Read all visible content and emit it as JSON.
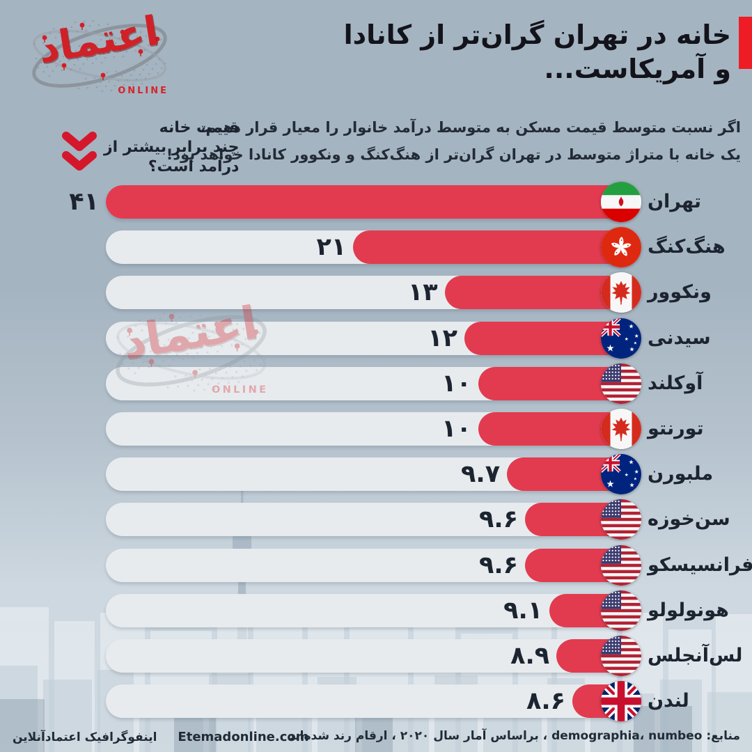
{
  "logo": {
    "wordmark": "اعتماد",
    "online": "ONLINE"
  },
  "header": {
    "title_line1": "خانه در تهران گران‌تر از کانادا",
    "title_line2": "و آمریکاست...",
    "accent_color": "#ee1c25"
  },
  "subtitle": {
    "line1": "اگر نسبت متوسط قیمت مسکن به متوسط درآمد خانوار را معیار قرار دهیم،",
    "line2": "یک خانه با متراژ متوسط در تهران گران‌تر از هنگ‌کنگ و ونکوور کانادا خواهد بود!"
  },
  "question": {
    "line1": "قیمت خانه",
    "line2": "چند برابر بیشتر از",
    "line3": "درآمد است؟",
    "icon": "double-chevron-down-icon",
    "icon_color": "#d5172c"
  },
  "chart_data": {
    "type": "bar",
    "orientation": "horizontal",
    "direction": "rtl",
    "title": "خانه در تهران گران‌تر از کانادا و آمریکاست...",
    "xlabel": "",
    "ylabel": "",
    "xlim": [
      0,
      41
    ],
    "grid": false,
    "legend": false,
    "bar_color": "#e23b4f",
    "track_color": "#e7ebee",
    "categories": [
      "تهران",
      "هنگ‌کنگ",
      "ونکوور",
      "سیدنی",
      "آوکلند",
      "تورنتو",
      "ملبورن",
      "سن‌خوزه",
      "سان‌فرانسیسکو",
      "هونولولو",
      "لس‌آنجلس",
      "لندن"
    ],
    "values": [
      41,
      21,
      13,
      12,
      10,
      10,
      9.7,
      9.6,
      9.6,
      9.1,
      8.9,
      8.6
    ],
    "rows": [
      {
        "city": "تهران",
        "flag": "iran",
        "value": 41,
        "value_fa": "۴۱",
        "bar_pct": 100
      },
      {
        "city": "هنگ‌کنگ",
        "flag": "hongkong",
        "value": 21,
        "value_fa": "۲۱",
        "bar_pct": 53.5
      },
      {
        "city": "ونکوور",
        "flag": "canada",
        "value": 13,
        "value_fa": "۱۳",
        "bar_pct": 36.3
      },
      {
        "city": "سیدنی",
        "flag": "australia",
        "value": 12,
        "value_fa": "۱۲",
        "bar_pct": 32.6
      },
      {
        "city": "آوکلند",
        "flag": "usa",
        "value": 10,
        "value_fa": "۱۰",
        "bar_pct": 30
      },
      {
        "city": "تورنتو",
        "flag": "canada",
        "value": 10,
        "value_fa": "۱۰",
        "bar_pct": 30
      },
      {
        "city": "ملبورن",
        "flag": "australia",
        "value": 9.7,
        "value_fa": "۹.۷",
        "bar_pct": 24.6
      },
      {
        "city": "سن‌خوزه",
        "flag": "usa",
        "value": 9.6,
        "value_fa": "۹.۶",
        "bar_pct": 21.2
      },
      {
        "city": "سان‌فرانسیسکو",
        "flag": "usa",
        "value": 9.6,
        "value_fa": "۹.۶",
        "bar_pct": 21.2
      },
      {
        "city": "هونولولو",
        "flag": "usa",
        "value": 9.1,
        "value_fa": "۹.۱",
        "bar_pct": 16.6
      },
      {
        "city": "لس‌آنجلس",
        "flag": "usa",
        "value": 8.9,
        "value_fa": "۸.۹",
        "bar_pct": 15.3
      },
      {
        "city": "لندن",
        "flag": "uk",
        "value": 8.6,
        "value_fa": "۸.۶",
        "bar_pct": 12.3
      }
    ]
  },
  "footer": {
    "sources": "منابع: demographia، numbeo ، براساس آمار سال ۲۰۲۰ ، ارقام رند شده‌اند",
    "credit_fa": "اینفوگرافیک اعتمادآنلاین",
    "credit_url": "Etemadonline.com"
  }
}
